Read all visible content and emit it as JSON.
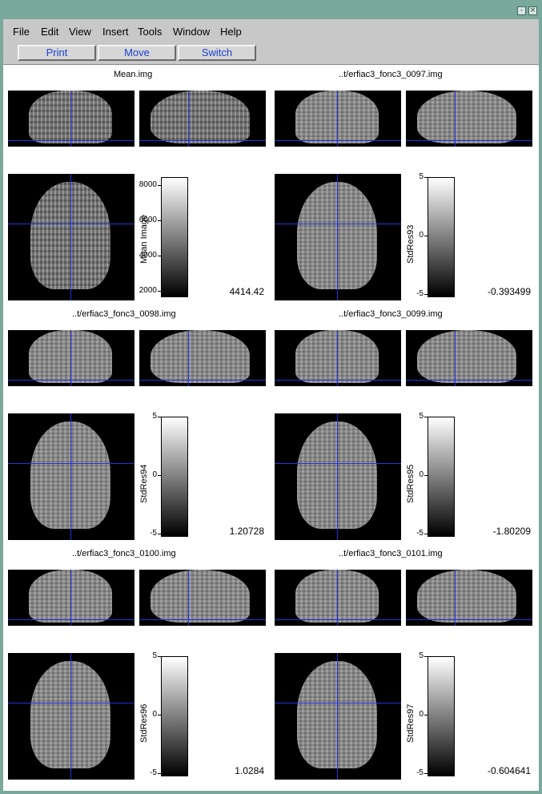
{
  "window": {
    "minimize": "-",
    "close": "×"
  },
  "menu": [
    "File",
    "Edit",
    "View",
    "Insert",
    "Tools",
    "Window",
    "Help"
  ],
  "toolbar": [
    "Print",
    "Move",
    "Switch"
  ],
  "panels": [
    {
      "filename": "Mean.img",
      "colorbar_label": "Mean Image",
      "ticks": [
        "8000",
        "6000",
        "4000",
        "2000"
      ],
      "value": "4414.42",
      "kind": "mean"
    },
    {
      "filename": "..t/erfiac3_fonc3_0097.img",
      "colorbar_label": "StdRes93",
      "ticks": [
        "5",
        "0",
        "-5"
      ],
      "value": "-0.393499",
      "kind": "res"
    },
    {
      "filename": "..t/erfiac3_fonc3_0098.img",
      "colorbar_label": "StdRes94",
      "ticks": [
        "5",
        "0",
        "-5"
      ],
      "value": "1.20728",
      "kind": "res"
    },
    {
      "filename": "..t/erfiac3_fonc3_0099.img",
      "colorbar_label": "StdRes95",
      "ticks": [
        "5",
        "0",
        "-5"
      ],
      "value": "-1.80209",
      "kind": "res"
    },
    {
      "filename": "..t/erfiac3_fonc3_0100.img",
      "colorbar_label": "StdRes96",
      "ticks": [
        "5",
        "0",
        "-5"
      ],
      "value": "1.0284",
      "kind": "res"
    },
    {
      "filename": "..t/erfiac3_fonc3_0101.img",
      "colorbar_label": "StdRes97",
      "ticks": [
        "5",
        "0",
        "-5"
      ],
      "value": "-0.604641",
      "kind": "res"
    }
  ],
  "colors": {
    "crosshair": "#2233dd",
    "titlebar": "#7aa89a",
    "button_text": "#1a3fd0"
  }
}
